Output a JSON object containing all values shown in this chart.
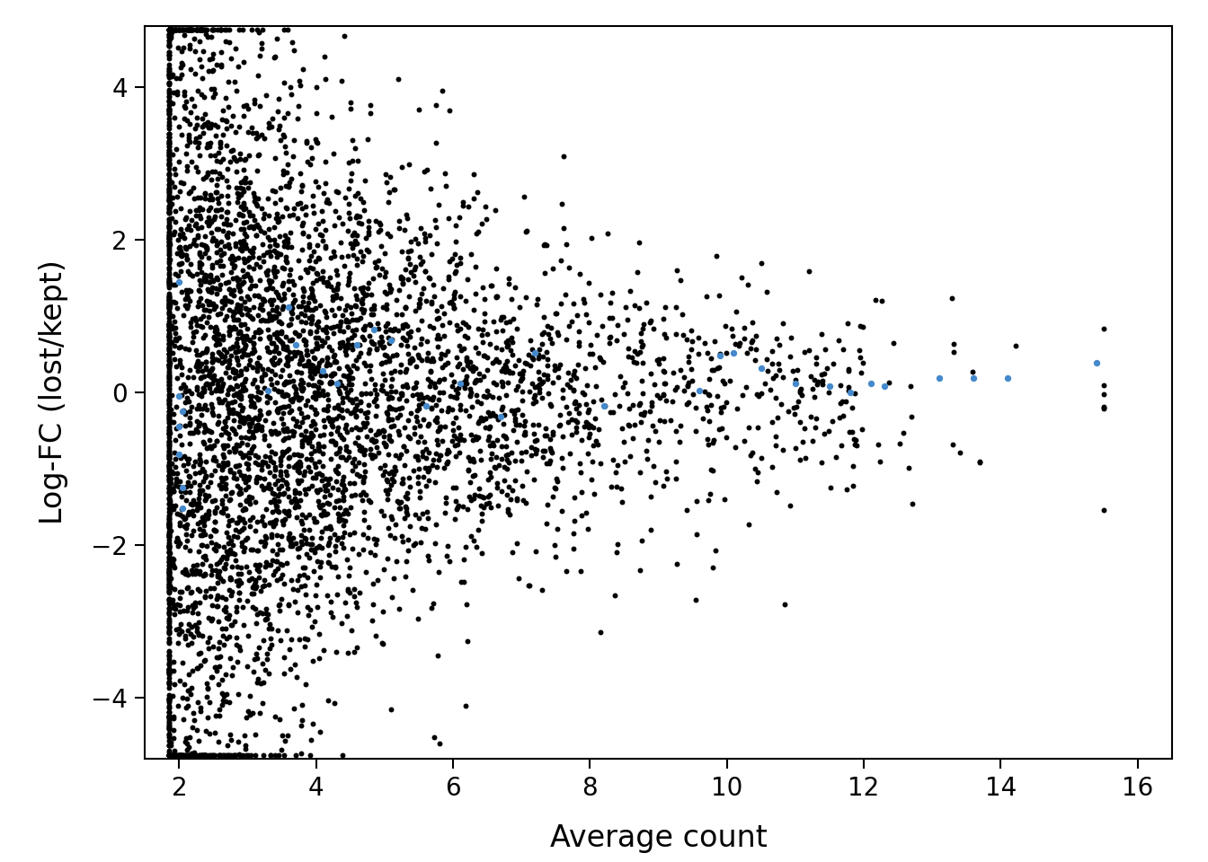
{
  "title": "",
  "xlabel": "Average count",
  "ylabel": "Log-FC (lost/kept)",
  "xlim": [
    1.5,
    16.5
  ],
  "ylim": [
    -4.8,
    4.8
  ],
  "xticks": [
    2,
    4,
    6,
    8,
    10,
    12,
    14,
    16
  ],
  "yticks": [
    -4,
    -2,
    0,
    2,
    4
  ],
  "background_color": "#ffffff",
  "black_color": "#000000",
  "blue_color": "#4489cb",
  "point_size_black": 18,
  "point_size_blue": 28,
  "n_black": 5000,
  "seed": 12345,
  "figsize": [
    13.44,
    9.6
  ],
  "dpi": 100,
  "blue_x": [
    2.0,
    2.0,
    2.0,
    2.0,
    2.05,
    2.05,
    2.05,
    3.3,
    3.6,
    3.7,
    4.1,
    4.3,
    4.6,
    4.85,
    5.1,
    5.6,
    6.1,
    6.7,
    7.2,
    8.2,
    9.6,
    9.9,
    10.1,
    10.5,
    11.0,
    11.5,
    11.8,
    12.1,
    12.3,
    13.1,
    13.6,
    14.1,
    15.4
  ],
  "blue_y": [
    1.45,
    -0.05,
    -0.45,
    -0.82,
    -1.25,
    -1.52,
    -0.25,
    0.02,
    1.12,
    0.62,
    0.28,
    0.12,
    0.62,
    0.82,
    0.68,
    -0.18,
    0.12,
    -0.32,
    0.52,
    -0.18,
    0.02,
    0.48,
    0.52,
    0.32,
    0.12,
    0.08,
    0.0,
    0.12,
    0.08,
    0.18,
    0.18,
    0.18,
    0.38
  ]
}
